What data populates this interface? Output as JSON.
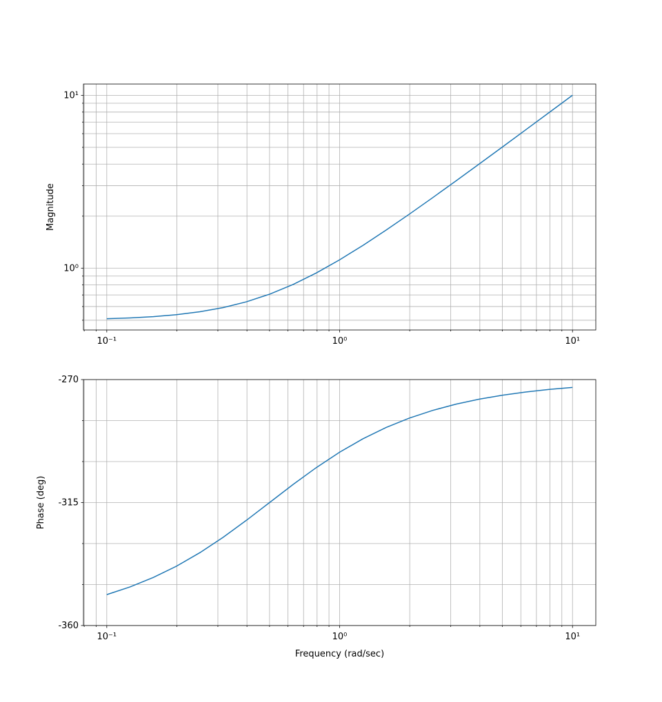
{
  "chart_data": [
    {
      "type": "line",
      "y_label": "Magnitude",
      "xscale": "log",
      "yscale": "log",
      "grid": true,
      "x": [
        0.1,
        0.1259,
        0.1585,
        0.1995,
        0.2512,
        0.3162,
        0.3981,
        0.5012,
        0.631,
        0.7943,
        1,
        1.2589,
        1.5849,
        1.9953,
        2.5119,
        3.1623,
        3.9811,
        5.0119,
        6.3096,
        7.9433,
        10
      ],
      "series": [
        {
          "color": "#1f77b4",
          "values": [
            0.5099,
            0.5156,
            0.5245,
            0.5383,
            0.5596,
            0.5916,
            0.6391,
            0.708,
            0.805,
            0.9386,
            1.118,
            1.3546,
            1.6619,
            2.057,
            2.5612,
            3.2016,
            4.0124,
            5.0368,
            6.3294,
            7.959,
            10.0125
          ]
        }
      ],
      "xlim": [
        0.0794,
        12.59
      ],
      "ylim": [
        0.439,
        11.62
      ],
      "xticks": [
        {
          "value": 0.1,
          "label": "10⁻¹"
        },
        {
          "value": 1,
          "label": "10⁰"
        },
        {
          "value": 10,
          "label": "10¹"
        }
      ],
      "x_minor_ticks": [
        0.08,
        0.09,
        0.2,
        0.3,
        0.4,
        0.5,
        0.6,
        0.7,
        0.8,
        0.9,
        2,
        3,
        4,
        5,
        6,
        7,
        8,
        9
      ],
      "yticks": [
        {
          "value": 1,
          "label": "10⁰"
        },
        {
          "value": 10,
          "label": "10¹"
        }
      ],
      "y_minor_ticks": [
        0.5,
        0.6,
        0.7,
        0.8,
        0.9,
        2,
        3,
        4,
        5,
        6,
        7,
        8,
        9
      ]
    },
    {
      "type": "line",
      "y_label": "Phase (deg)",
      "x_label": "Frequency (rad/sec)",
      "xscale": "log",
      "yscale": "linear",
      "grid": true,
      "x": [
        0.1,
        0.1259,
        0.1585,
        0.1995,
        0.2512,
        0.3162,
        0.3981,
        0.5012,
        0.631,
        0.7943,
        1,
        1.2589,
        1.5849,
        1.9953,
        2.5119,
        3.1623,
        3.9811,
        5.0119,
        6.3096,
        7.9433,
        10
      ],
      "series": [
        {
          "color": "#1f77b4",
          "values": [
            -348.69,
            -345.87,
            -342.41,
            -338.25,
            -333.33,
            -327.69,
            -321.47,
            -314.93,
            -308.38,
            -302.19,
            -296.57,
            -291.66,
            -287.51,
            -284.07,
            -281.26,
            -278.98,
            -277.16,
            -275.7,
            -274.53,
            -273.6,
            -272.86
          ]
        }
      ],
      "xlim": [
        0.0794,
        12.59
      ],
      "ylim": [
        -360,
        -270
      ],
      "xticks": [
        {
          "value": 0.1,
          "label": "10⁻¹"
        },
        {
          "value": 1,
          "label": "10⁰"
        },
        {
          "value": 10,
          "label": "10¹"
        }
      ],
      "x_minor_ticks": [
        0.08,
        0.09,
        0.2,
        0.3,
        0.4,
        0.5,
        0.6,
        0.7,
        0.8,
        0.9,
        2,
        3,
        4,
        5,
        6,
        7,
        8,
        9
      ],
      "yticks": [
        -360,
        -315,
        -270
      ],
      "y_minor_ticks": [
        -345,
        -330,
        -300,
        -285
      ]
    }
  ]
}
